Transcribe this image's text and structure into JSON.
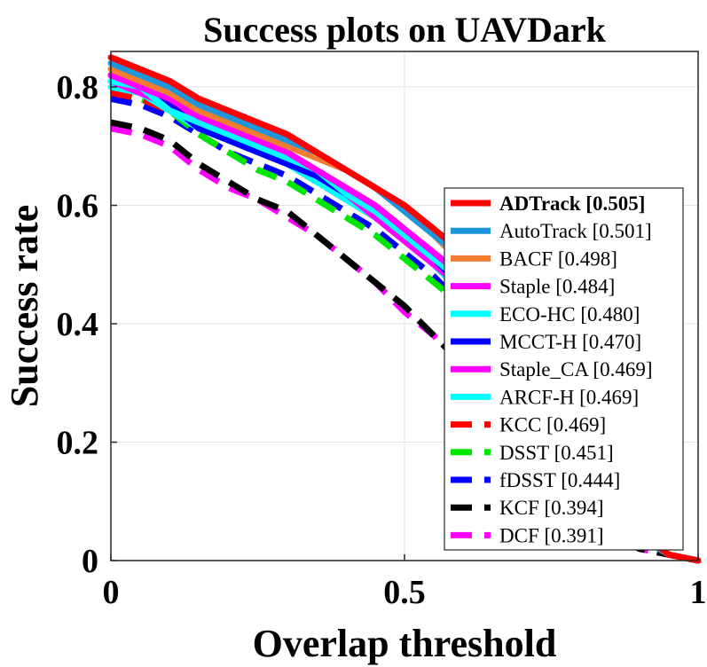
{
  "chart_data": {
    "type": "line",
    "title": "Success plots on UAVDark",
    "xlabel": "Overlap threshold",
    "ylabel": "Success rate",
    "xlim": [
      0,
      1
    ],
    "ylim": [
      0,
      0.86
    ],
    "x_ticks": [
      0,
      0.5,
      1
    ],
    "x_tick_labels": [
      "0",
      "0.5",
      "1"
    ],
    "y_ticks": [
      0,
      0.2,
      0.4,
      0.6,
      0.8
    ],
    "y_tick_labels": [
      "0",
      "0.2",
      "0.4",
      "0.6",
      "0.8"
    ],
    "grid": true,
    "legend_position": "right-center",
    "x": [
      0,
      0.05,
      0.1,
      0.15,
      0.2,
      0.25,
      0.3,
      0.35,
      0.4,
      0.45,
      0.5,
      0.55,
      0.6,
      0.65,
      0.7,
      0.75,
      0.8,
      0.85,
      0.9,
      0.95,
      1
    ],
    "series": [
      {
        "name": "ADTrack [0.505]",
        "label_bold": true,
        "color": "#ff0000",
        "style": "solid",
        "values": [
          0.85,
          0.83,
          0.81,
          0.78,
          0.76,
          0.74,
          0.72,
          0.69,
          0.66,
          0.63,
          0.6,
          0.56,
          0.52,
          0.46,
          0.39,
          0.3,
          0.2,
          0.11,
          0.05,
          0.01,
          0.0
        ]
      },
      {
        "name": "AutoTrack [0.501]",
        "color": "#1e96dc",
        "style": "solid",
        "values": [
          0.84,
          0.82,
          0.8,
          0.77,
          0.75,
          0.73,
          0.71,
          0.69,
          0.66,
          0.63,
          0.59,
          0.55,
          0.51,
          0.45,
          0.38,
          0.29,
          0.19,
          0.1,
          0.04,
          0.01,
          0.0
        ]
      },
      {
        "name": "BACF [0.498]",
        "color": "#f07d32",
        "style": "solid",
        "values": [
          0.83,
          0.81,
          0.79,
          0.76,
          0.74,
          0.72,
          0.7,
          0.68,
          0.66,
          0.63,
          0.59,
          0.55,
          0.5,
          0.44,
          0.37,
          0.29,
          0.19,
          0.1,
          0.04,
          0.01,
          0.0
        ]
      },
      {
        "name": "Staple [0.484]",
        "color": "#ff00ff",
        "style": "solid",
        "values": [
          0.82,
          0.8,
          0.78,
          0.75,
          0.73,
          0.71,
          0.69,
          0.66,
          0.63,
          0.6,
          0.56,
          0.52,
          0.48,
          0.42,
          0.35,
          0.27,
          0.18,
          0.09,
          0.04,
          0.01,
          0.0
        ]
      },
      {
        "name": "ECO-HC [0.480]",
        "color": "#00ffff",
        "style": "solid",
        "values": [
          0.81,
          0.8,
          0.76,
          0.74,
          0.72,
          0.7,
          0.68,
          0.66,
          0.62,
          0.59,
          0.55,
          0.51,
          0.47,
          0.41,
          0.34,
          0.26,
          0.17,
          0.09,
          0.04,
          0.01,
          0.0
        ]
      },
      {
        "name": "MCCT-H [0.470]",
        "color": "#0000ff",
        "style": "solid",
        "values": [
          0.82,
          0.8,
          0.77,
          0.73,
          0.71,
          0.69,
          0.67,
          0.65,
          0.62,
          0.59,
          0.55,
          0.51,
          0.46,
          0.4,
          0.33,
          0.25,
          0.17,
          0.09,
          0.04,
          0.01,
          0.0
        ]
      },
      {
        "name": "Staple_CA [0.469]",
        "color": "#ff00ff",
        "style": "solid",
        "values": [
          0.81,
          0.79,
          0.77,
          0.74,
          0.72,
          0.7,
          0.68,
          0.65,
          0.62,
          0.58,
          0.54,
          0.5,
          0.46,
          0.4,
          0.33,
          0.25,
          0.17,
          0.09,
          0.04,
          0.01,
          0.0
        ]
      },
      {
        "name": "ARCF-H [0.469]",
        "color": "#00ffff",
        "style": "solid",
        "values": [
          0.8,
          0.79,
          0.76,
          0.73,
          0.71,
          0.69,
          0.67,
          0.64,
          0.61,
          0.58,
          0.54,
          0.5,
          0.45,
          0.39,
          0.33,
          0.25,
          0.16,
          0.09,
          0.04,
          0.01,
          0.0
        ]
      },
      {
        "name": "KCC [0.469]",
        "color": "#ff0000",
        "style": "dashed",
        "values": [
          0.79,
          0.78,
          0.76,
          0.73,
          0.71,
          0.69,
          0.67,
          0.64,
          0.61,
          0.58,
          0.54,
          0.5,
          0.45,
          0.39,
          0.32,
          0.25,
          0.16,
          0.09,
          0.04,
          0.01,
          0.0
        ]
      },
      {
        "name": "DSST [0.451]",
        "color": "#00e600",
        "style": "dashed",
        "values": [
          0.8,
          0.78,
          0.76,
          0.72,
          0.69,
          0.66,
          0.64,
          0.61,
          0.58,
          0.55,
          0.51,
          0.47,
          0.43,
          0.37,
          0.31,
          0.24,
          0.16,
          0.09,
          0.04,
          0.01,
          0.0
        ]
      },
      {
        "name": "fDSST [0.444]",
        "color": "#0000ff",
        "style": "dashed",
        "values": [
          0.78,
          0.77,
          0.75,
          0.72,
          0.69,
          0.67,
          0.65,
          0.62,
          0.59,
          0.56,
          0.52,
          0.48,
          0.43,
          0.37,
          0.31,
          0.23,
          0.16,
          0.08,
          0.04,
          0.01,
          0.0
        ]
      },
      {
        "name": "KCF [0.394]",
        "color": "#000000",
        "style": "dashed",
        "values": [
          0.74,
          0.73,
          0.71,
          0.67,
          0.64,
          0.61,
          0.59,
          0.55,
          0.51,
          0.47,
          0.43,
          0.38,
          0.33,
          0.28,
          0.22,
          0.16,
          0.1,
          0.05,
          0.02,
          0.01,
          0.0
        ]
      },
      {
        "name": "DCF [0.391]",
        "color": "#ff00ff",
        "style": "dashed",
        "values": [
          0.73,
          0.72,
          0.7,
          0.66,
          0.63,
          0.61,
          0.58,
          0.55,
          0.51,
          0.47,
          0.42,
          0.38,
          0.33,
          0.27,
          0.22,
          0.16,
          0.1,
          0.05,
          0.02,
          0.01,
          0.0
        ]
      }
    ]
  }
}
